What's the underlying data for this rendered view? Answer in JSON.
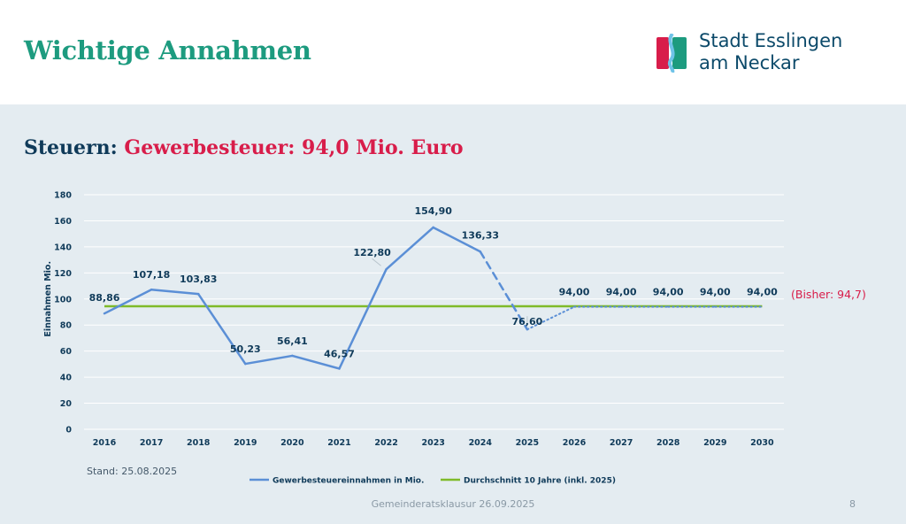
{
  "header": {
    "title": "Wichtige Annahmen",
    "logo_line1": "Stadt Esslingen",
    "logo_line2": "am Neckar"
  },
  "subtitle": {
    "label": "Steuern:",
    "value": "Gewerbesteuer: 94,0 Mio. Euro"
  },
  "chart_data": {
    "type": "line",
    "title": "",
    "xlabel": "",
    "ylabel": "Einnahmen Mio.",
    "ylim": [
      0,
      180
    ],
    "yticks": [
      "0",
      "20",
      "40",
      "60",
      "80",
      "100",
      "120",
      "140",
      "160",
      "180"
    ],
    "categories": [
      "2016",
      "2017",
      "2018",
      "2019",
      "2020",
      "2021",
      "2022",
      "2023",
      "2024",
      "2025",
      "2026",
      "2027",
      "2028",
      "2029",
      "2030"
    ],
    "grid": true,
    "legend_position": "bottom",
    "series": [
      {
        "name": "Gewerbesteuereinnahmen in Mio.",
        "color": "#5b8fd6",
        "values": [
          88.86,
          107.18,
          103.83,
          50.23,
          56.41,
          46.57,
          122.8,
          154.9,
          136.33,
          76.6,
          94.0,
          94.0,
          94.0,
          94.0,
          94.0
        ],
        "labels": [
          "88,86",
          "107,18",
          "103,83",
          "50,23",
          "56,41",
          "46,57",
          "122,80",
          "154,90",
          "136,33",
          "76,60",
          "94,00",
          "94,00",
          "94,00",
          "94,00",
          "94,00"
        ],
        "line_styles": [
          "solid",
          "solid",
          "solid",
          "solid",
          "solid",
          "solid",
          "solid",
          "solid",
          "dashed",
          "dotted",
          "dotted",
          "dotted",
          "dotted",
          "dotted"
        ]
      },
      {
        "name": "Durchschnitt 10 Jahre (inkl. 2025)",
        "color": "#7fba2a",
        "values": [
          94.4,
          94.4,
          94.4,
          94.4,
          94.4,
          94.4,
          94.4,
          94.4,
          94.4,
          94.4,
          94.4,
          94.4,
          94.4,
          94.4,
          94.4
        ]
      }
    ],
    "annotation": {
      "text": "(Bisher: 94,7)",
      "color": "#d81d4a"
    }
  },
  "footer": {
    "stand": "Stand: 25.08.2025",
    "center": "Gemeinderatsklausur 26.09.2025",
    "page": "8"
  }
}
